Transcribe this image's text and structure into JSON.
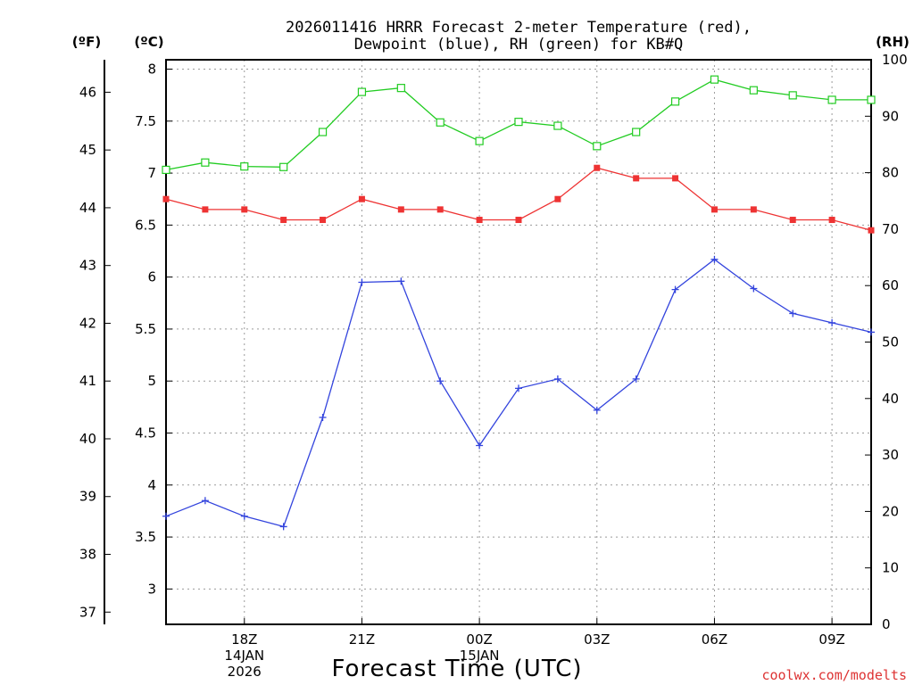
{
  "chart_data": {
    "type": "line",
    "title_line1": "2026011416 HRRR Forecast 2-meter Temperature (red),",
    "title_line2": "Dewpoint (blue), RH (green) for KB#Q",
    "units": {
      "fahrenheit": "(ºF)",
      "celsius": "(ºC)",
      "rh": "(RH)"
    },
    "xlabel": "Forecast Time (UTC)",
    "credit": "coolwx.com/modelts",
    "x_hours": [
      16,
      17,
      18,
      19,
      20,
      21,
      22,
      23,
      24,
      25,
      26,
      27,
      28,
      29,
      30,
      31,
      32,
      33,
      34
    ],
    "x_range": [
      16,
      34
    ],
    "x_ticks": [
      {
        "hour": 18,
        "lines": [
          "18Z",
          "14JAN",
          "2026"
        ]
      },
      {
        "hour": 21,
        "lines": [
          "21Z"
        ]
      },
      {
        "hour": 24,
        "lines": [
          "00Z",
          "15JAN"
        ]
      },
      {
        "hour": 27,
        "lines": [
          "03Z"
        ]
      },
      {
        "hour": 30,
        "lines": [
          "06Z"
        ]
      },
      {
        "hour": 33,
        "lines": [
          "09Z"
        ]
      }
    ],
    "c_range": [
      2.66,
      8.09
    ],
    "c_ticks": [
      "3",
      "3.5",
      "4",
      "4.5",
      "5",
      "5.5",
      "6",
      "6.5",
      "7",
      "7.5",
      "8"
    ],
    "f_ticks": [
      "37",
      "38",
      "39",
      "40",
      "41",
      "42",
      "43",
      "44",
      "45",
      "46"
    ],
    "rh_range": [
      0,
      100
    ],
    "rh_ticks": [
      "0",
      "10",
      "20",
      "30",
      "40",
      "50",
      "60",
      "70",
      "80",
      "90",
      "100"
    ],
    "series": [
      {
        "name": "Temperature",
        "color": "#ee3333",
        "axis": "celsius",
        "marker": "filled-square",
        "values": [
          6.75,
          6.65,
          6.65,
          6.55,
          6.55,
          6.75,
          6.65,
          6.65,
          6.55,
          6.55,
          6.75,
          7.05,
          6.95,
          6.95,
          6.65,
          6.65,
          6.55,
          6.55,
          6.45
        ]
      },
      {
        "name": "Dewpoint",
        "color": "#3344dd",
        "axis": "celsius",
        "marker": "plus",
        "values": [
          3.7,
          3.85,
          3.7,
          3.6,
          4.65,
          5.95,
          5.96,
          5.0,
          4.38,
          4.93,
          5.02,
          4.72,
          5.02,
          5.88,
          6.17,
          5.89,
          5.65,
          5.56,
          5.47
        ]
      },
      {
        "name": "RH",
        "color": "#22cc22",
        "axis": "rh",
        "marker": "open-square",
        "values": [
          80.5,
          81.8,
          81.1,
          81.0,
          87.2,
          94.3,
          95.0,
          88.9,
          85.6,
          89.0,
          88.3,
          84.7,
          87.2,
          92.6,
          96.5,
          94.6,
          93.7,
          92.9,
          92.9
        ]
      }
    ]
  }
}
